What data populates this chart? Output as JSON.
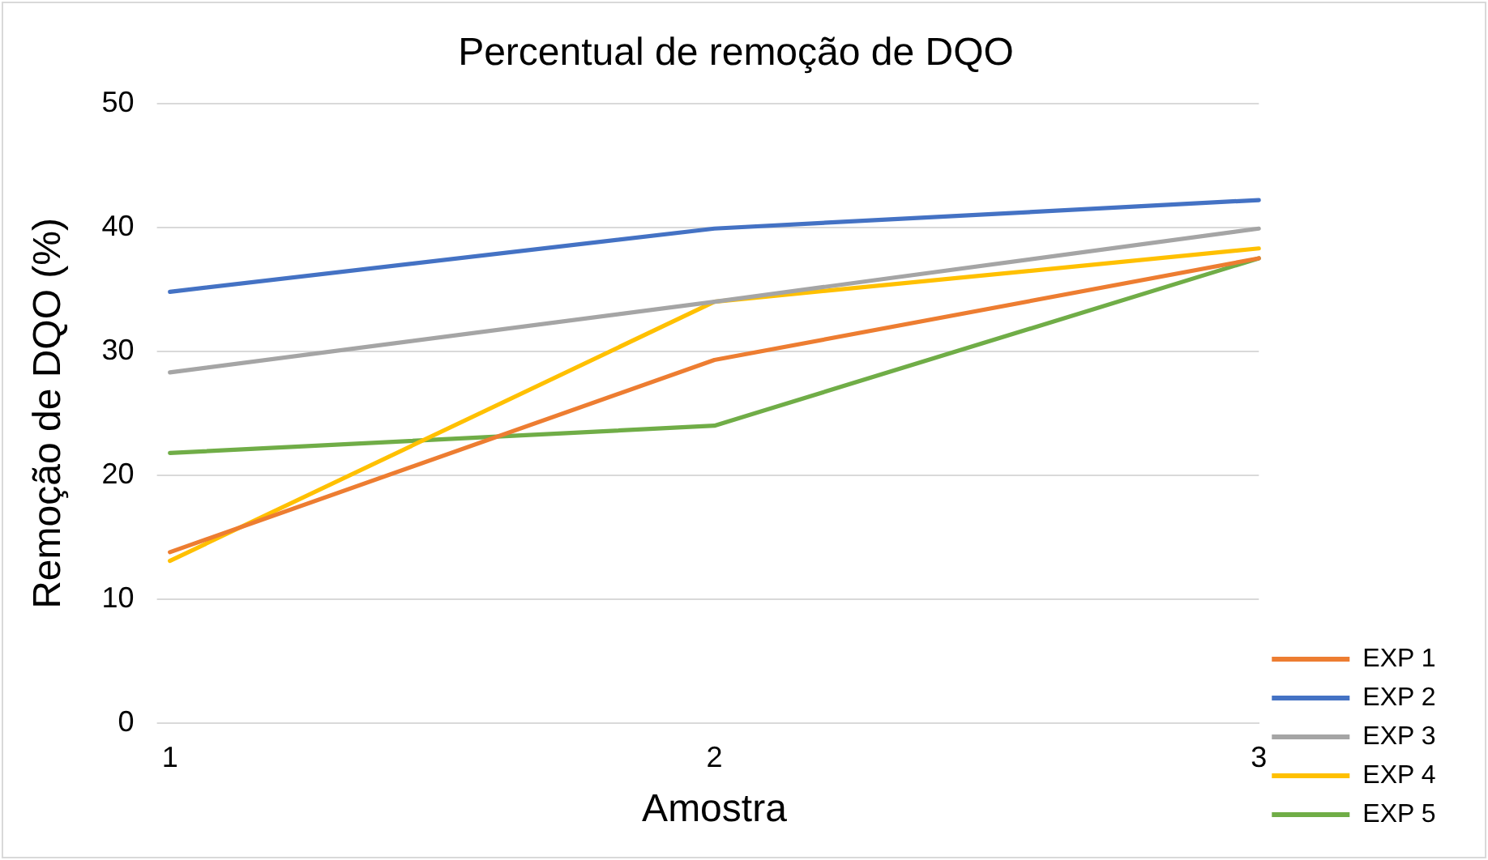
{
  "chart_data": {
    "type": "line",
    "title": "Percentual de remoção de DQO",
    "xlabel": "Amostra",
    "ylabel": "Remoção de DQO (%)",
    "categories": [
      "1",
      "2",
      "3"
    ],
    "series": [
      {
        "name": "EXP 1",
        "color": "#ed7d31",
        "values": [
          13.8,
          29.3,
          37.5
        ]
      },
      {
        "name": "EXP 2",
        "color": "#4472c4",
        "values": [
          34.8,
          39.9,
          42.2
        ]
      },
      {
        "name": "EXP 3",
        "color": "#a5a5a5",
        "values": [
          28.3,
          34.0,
          39.9
        ]
      },
      {
        "name": "EXP 4",
        "color": "#ffc000",
        "values": [
          13.1,
          34.0,
          38.3
        ]
      },
      {
        "name": "EXP 5",
        "color": "#70ad47",
        "values": [
          21.8,
          24.0,
          37.5
        ]
      }
    ],
    "ylim": [
      0,
      50
    ],
    "yticks": [
      0,
      10,
      20,
      30,
      40,
      50
    ],
    "grid": "y",
    "legend": "right",
    "marker": "none",
    "line_style": "solid"
  }
}
